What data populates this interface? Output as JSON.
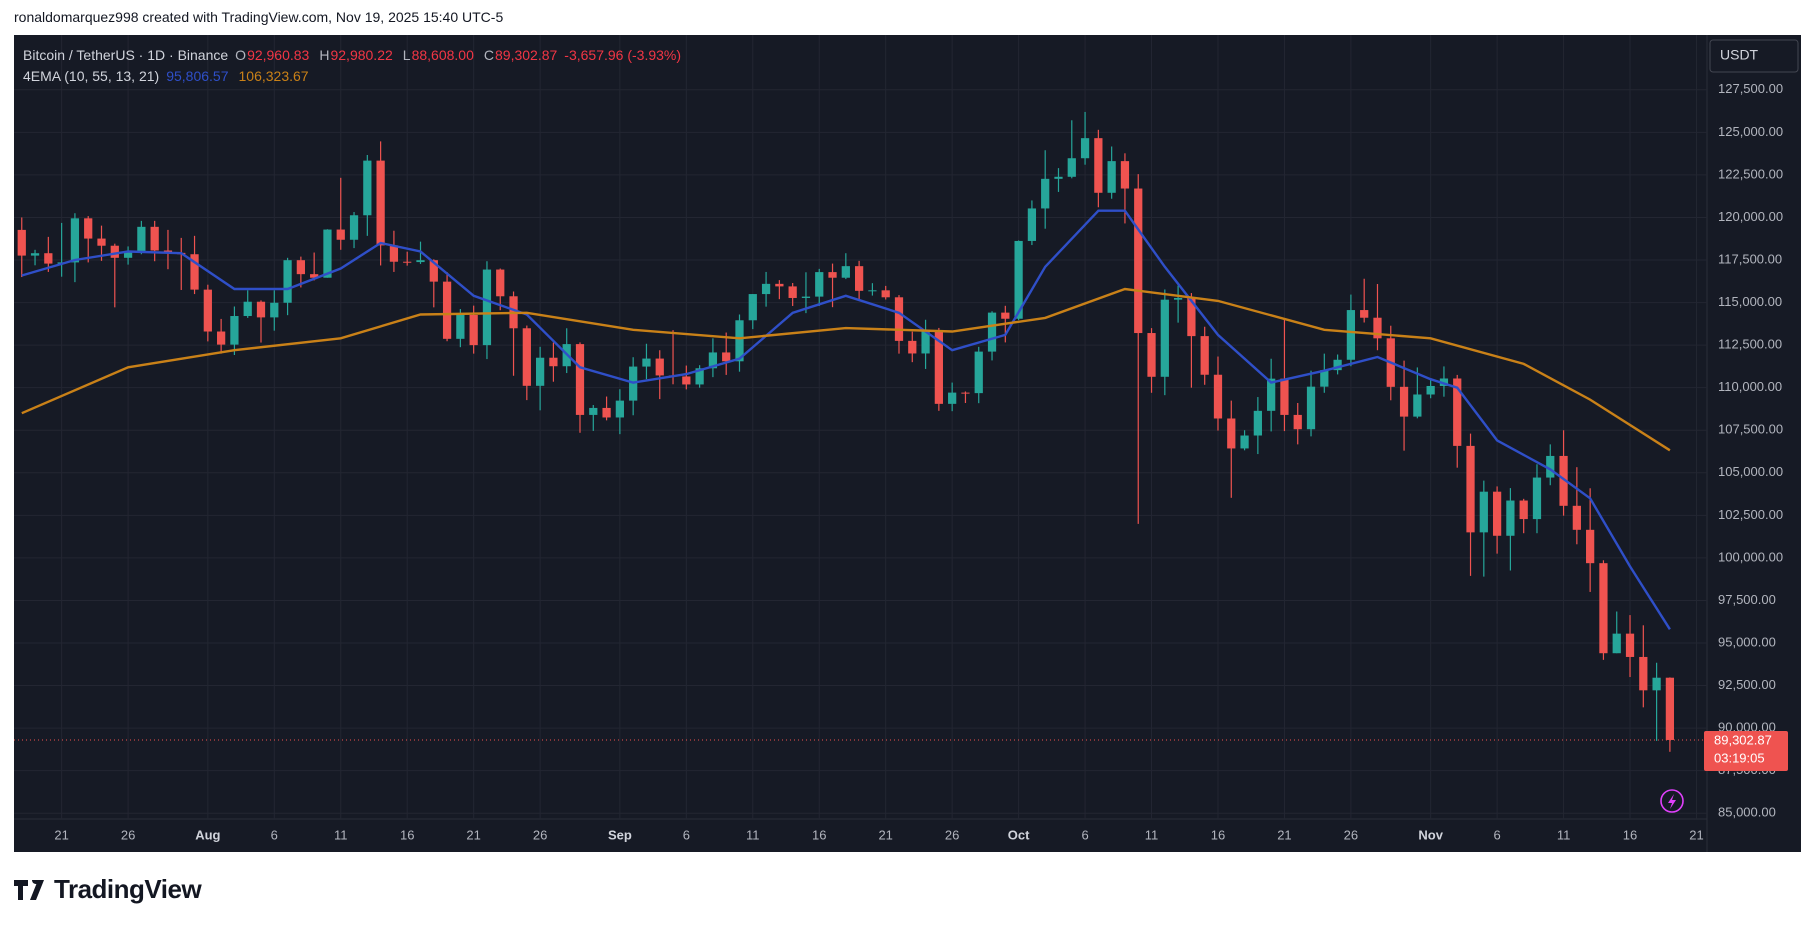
{
  "credit": "ronaldomarquez998 created with TradingView.com, Nov 19, 2025 15:40 UTC-5",
  "logo": "TradingView",
  "header": {
    "symbol": "Bitcoin / TetherUS · 1D · Binance",
    "ohlc": [
      {
        "key": "O",
        "value": "92,960.83"
      },
      {
        "key": "H",
        "value": "92,980.22"
      },
      {
        "key": "L",
        "value": "88,608.00"
      },
      {
        "key": "C",
        "value": "89,302.87"
      }
    ],
    "change": "-3,657.96 (-3.93%)",
    "indicator": "4EMA (10, 55, 13, 21)",
    "indicator_values": [
      "95,806.57",
      "106,323.67"
    ]
  },
  "currency": "USDT",
  "price_label": "89,302.87",
  "countdown": "03:19:05",
  "chart_data": {
    "type": "candlestick",
    "up_color": "#26a69a",
    "down_color": "#ef5350",
    "grid": true,
    "x": [
      "2025-07-18",
      "2025-07-19",
      "2025-07-20",
      "2025-07-21",
      "2025-07-22",
      "2025-07-23",
      "2025-07-24",
      "2025-07-25",
      "2025-07-26",
      "2025-07-27",
      "2025-07-28",
      "2025-07-29",
      "2025-07-30",
      "2025-07-31",
      "2025-08-01",
      "2025-08-02",
      "2025-08-03",
      "2025-08-04",
      "2025-08-05",
      "2025-08-06",
      "2025-08-07",
      "2025-08-08",
      "2025-08-09",
      "2025-08-10",
      "2025-08-11",
      "2025-08-12",
      "2025-08-13",
      "2025-08-14",
      "2025-08-15",
      "2025-08-16",
      "2025-08-17",
      "2025-08-18",
      "2025-08-19",
      "2025-08-20",
      "2025-08-21",
      "2025-08-22",
      "2025-08-23",
      "2025-08-24",
      "2025-08-25",
      "2025-08-26",
      "2025-08-27",
      "2025-08-28",
      "2025-08-29",
      "2025-08-30",
      "2025-08-31",
      "2025-09-01",
      "2025-09-02",
      "2025-09-03",
      "2025-09-04",
      "2025-09-05",
      "2025-09-06",
      "2025-09-07",
      "2025-09-08",
      "2025-09-09",
      "2025-09-10",
      "2025-09-11",
      "2025-09-12",
      "2025-09-13",
      "2025-09-14",
      "2025-09-15",
      "2025-09-16",
      "2025-09-17",
      "2025-09-18",
      "2025-09-19",
      "2025-09-20",
      "2025-09-21",
      "2025-09-22",
      "2025-09-23",
      "2025-09-24",
      "2025-09-25",
      "2025-09-26",
      "2025-09-27",
      "2025-09-28",
      "2025-09-29",
      "2025-09-30",
      "2025-10-01",
      "2025-10-02",
      "2025-10-03",
      "2025-10-04",
      "2025-10-05",
      "2025-10-06",
      "2025-10-07",
      "2025-10-08",
      "2025-10-09",
      "2025-10-10",
      "2025-10-11",
      "2025-10-12",
      "2025-10-13",
      "2025-10-14",
      "2025-10-15",
      "2025-10-16",
      "2025-10-17",
      "2025-10-18",
      "2025-10-19",
      "2025-10-20",
      "2025-10-21",
      "2025-10-22",
      "2025-10-23",
      "2025-10-24",
      "2025-10-25",
      "2025-10-26",
      "2025-10-27",
      "2025-10-28",
      "2025-10-29",
      "2025-10-30",
      "2025-10-31",
      "2025-11-01",
      "2025-11-02",
      "2025-11-03",
      "2025-11-04",
      "2025-11-05",
      "2025-11-06",
      "2025-11-07",
      "2025-11-08",
      "2025-11-09",
      "2025-11-10",
      "2025-11-11",
      "2025-11-12",
      "2025-11-13",
      "2025-11-14",
      "2025-11-15",
      "2025-11-16",
      "2025-11-17",
      "2025-11-18",
      "2025-11-19"
    ],
    "open": [
      119270,
      117760,
      117900,
      117290,
      117360,
      119950,
      118760,
      118340,
      117630,
      117950,
      119450,
      118060,
      117920,
      117840,
      115760,
      113300,
      112530,
      114210,
      115050,
      114130,
      114990,
      117490,
      116670,
      116460,
      119290,
      118690,
      120130,
      123340,
      118360,
      117400,
      117380,
      117490,
      116230,
      112870,
      114270,
      112500,
      116940,
      115370,
      113490,
      110110,
      111760,
      111260,
      112560,
      108400,
      108810,
      108250,
      109240,
      111240,
      111710,
      110720,
      110660,
      110190,
      111140,
      112070,
      111550,
      113960,
      115500,
      116100,
      115950,
      115270,
      115350,
      116790,
      116460,
      117140,
      115690,
      115720,
      115310,
      112750,
      112010,
      113330,
      109050,
      109710,
      109680,
      112120,
      114410,
      114050,
      118620,
      120530,
      122270,
      122390,
      123480,
      124660,
      121450,
      123310,
      121700,
      113210,
      110640,
      115170,
      115270,
      113030,
      110760,
      108190,
      106430,
      107190,
      108640,
      110530,
      108400,
      107560,
      110060,
      111030,
      111640,
      114560,
      114110,
      112900,
      110050,
      108300,
      109600,
      110100,
      110540,
      106580,
      101500,
      103890,
      101300,
      103370,
      102280,
      104720,
      105990,
      103060,
      101650,
      99690,
      94400,
      95550,
      94180,
      92220,
      92960.83
    ],
    "high": [
      120000,
      118100,
      118860,
      119680,
      120250,
      120080,
      119520,
      118460,
      118300,
      119800,
      119800,
      119270,
      118800,
      118920,
      116050,
      114040,
      114770,
      115720,
      115130,
      115720,
      117630,
      117700,
      117940,
      119310,
      122330,
      120320,
      123670,
      124470,
      119220,
      117990,
      118580,
      117540,
      116790,
      114620,
      114820,
      117430,
      117000,
      115650,
      113650,
      112400,
      112650,
      113490,
      112660,
      108980,
      109480,
      109910,
      111790,
      112580,
      112200,
      113380,
      111300,
      111320,
      112900,
      113240,
      114300,
      115500,
      116800,
      116320,
      116150,
      116780,
      116980,
      117290,
      117900,
      117450,
      116140,
      115980,
      115440,
      113290,
      113990,
      113510,
      110300,
      109780,
      112400,
      114490,
      114810,
      118650,
      121000,
      123950,
      122900,
      125710,
      126200,
      125150,
      124170,
      123770,
      122550,
      113500,
      115770,
      116000,
      115560,
      113580,
      111830,
      109240,
      107500,
      109450,
      111700,
      114000,
      109100,
      111000,
      112000,
      111950,
      115470,
      116400,
      116090,
      113640,
      111590,
      111190,
      110560,
      111250,
      110750,
      107300,
      104540,
      104200,
      104100,
      103470,
      105500,
      106670,
      107500,
      105330,
      104090,
      99860,
      96850,
      96640,
      96040,
      93840,
      92980.22
    ],
    "low": [
      116500,
      117190,
      116800,
      116520,
      116200,
      117360,
      117450,
      114720,
      117230,
      117840,
      117430,
      116960,
      115740,
      115500,
      112720,
      112000,
      111920,
      114100,
      112650,
      113350,
      114260,
      115890,
      116300,
      116460,
      118100,
      118200,
      118920,
      117180,
      116800,
      117170,
      117270,
      114720,
      112730,
      112380,
      112000,
      111680,
      114550,
      110700,
      109270,
      108670,
      110350,
      110860,
      107350,
      107460,
      108080,
      107270,
      108380,
      110500,
      109330,
      110200,
      109900,
      110000,
      110620,
      110750,
      110940,
      113440,
      114760,
      115200,
      114800,
      114380,
      114800,
      114730,
      116380,
      115090,
      115410,
      115180,
      112000,
      111500,
      111100,
      108640,
      108620,
      109100,
      109090,
      111600,
      112660,
      113970,
      118380,
      119340,
      121500,
      122300,
      123100,
      120600,
      121100,
      119650,
      102000,
      109700,
      109560,
      113820,
      110000,
      110170,
      107480,
      103530,
      106320,
      106100,
      107430,
      107450,
      106670,
      107140,
      109700,
      110780,
      111260,
      113830,
      112200,
      109260,
      106300,
      108200,
      109380,
      109470,
      105300,
      98940,
      98900,
      100250,
      99260,
      101450,
      101450,
      104270,
      102480,
      100800,
      98000,
      94010,
      94400,
      93000,
      91220,
      89250,
      88608.0
    ],
    "close": [
      117760,
      117900,
      117290,
      117360,
      119950,
      118760,
      118340,
      117630,
      117950,
      119450,
      118060,
      117920,
      117840,
      115760,
      113300,
      112530,
      114210,
      115050,
      114130,
      114990,
      117490,
      116670,
      116460,
      119290,
      118690,
      120130,
      123340,
      118360,
      117400,
      117380,
      117490,
      116230,
      112870,
      114270,
      112500,
      116940,
      115370,
      113490,
      110110,
      111760,
      111260,
      112560,
      108400,
      108810,
      108250,
      109240,
      111240,
      111710,
      110720,
      110660,
      110190,
      111140,
      112070,
      111550,
      113960,
      115500,
      116100,
      115950,
      115270,
      115350,
      116790,
      116460,
      117140,
      115690,
      115720,
      115310,
      112750,
      112010,
      113330,
      109050,
      109710,
      109680,
      112120,
      114410,
      114050,
      118620,
      120530,
      122270,
      122390,
      123480,
      124660,
      121450,
      123310,
      121700,
      113210,
      110640,
      115170,
      115270,
      113030,
      110760,
      108190,
      106430,
      107190,
      108640,
      110530,
      108400,
      107560,
      110060,
      111030,
      111640,
      114560,
      114110,
      112900,
      110050,
      108300,
      109600,
      110100,
      110540,
      106580,
      101500,
      103890,
      101300,
      103370,
      102280,
      104720,
      105990,
      103060,
      101650,
      99690,
      94400,
      95550,
      94180,
      92220,
      92960.83,
      89302.87
    ],
    "lines": [
      {
        "color": "#2f4fc8",
        "x": [
          "2025-07-18",
          "2025-07-22",
          "2025-07-26",
          "2025-07-30",
          "2025-08-03",
          "2025-08-07",
          "2025-08-11",
          "2025-08-14",
          "2025-08-17",
          "2025-08-21",
          "2025-08-25",
          "2025-08-29",
          "2025-09-02",
          "2025-09-06",
          "2025-09-10",
          "2025-09-14",
          "2025-09-18",
          "2025-09-22",
          "2025-09-26",
          "2025-09-30",
          "2025-10-03",
          "2025-10-07",
          "2025-10-09",
          "2025-10-12",
          "2025-10-16",
          "2025-10-20",
          "2025-10-24",
          "2025-10-28",
          "2025-11-01",
          "2025-11-03",
          "2025-11-06",
          "2025-11-10",
          "2025-11-13",
          "2025-11-16",
          "2025-11-19"
        ],
        "values": [
          116590,
          117500,
          118000,
          117900,
          115800,
          115800,
          117000,
          118500,
          118000,
          115400,
          114300,
          111200,
          110300,
          110800,
          111700,
          114400,
          115400,
          114400,
          112200,
          113100,
          117100,
          120400,
          120400,
          117100,
          113100,
          110300,
          111000,
          111800,
          110500,
          110000,
          106900,
          105200,
          103500,
          99500,
          95806.57
        ]
      },
      {
        "color": "#c98118",
        "x": [
          "2025-07-18",
          "2025-07-26",
          "2025-08-03",
          "2025-08-11",
          "2025-08-17",
          "2025-08-25",
          "2025-09-02",
          "2025-09-10",
          "2025-09-18",
          "2025-09-26",
          "2025-10-03",
          "2025-10-09",
          "2025-10-16",
          "2025-10-24",
          "2025-11-01",
          "2025-11-08",
          "2025-11-13",
          "2025-11-19"
        ],
        "values": [
          108500,
          111200,
          112200,
          112900,
          114300,
          114400,
          113400,
          112900,
          113500,
          113300,
          114100,
          115800,
          115100,
          113400,
          112900,
          111400,
          109300,
          106323.67
        ]
      }
    ],
    "xlim": [
      "2025-07-17T10:00:00Z",
      "2025-11-21T19:00:00Z"
    ],
    "xticks": [
      {
        "value": "2025-07-21",
        "label": "21"
      },
      {
        "value": "2025-07-26",
        "label": "26"
      },
      {
        "value": "2025-08-01",
        "label": "Aug"
      },
      {
        "value": "2025-08-06",
        "label": "6"
      },
      {
        "value": "2025-08-11",
        "label": "11"
      },
      {
        "value": "2025-08-16",
        "label": "16"
      },
      {
        "value": "2025-08-21",
        "label": "21"
      },
      {
        "value": "2025-08-26",
        "label": "26"
      },
      {
        "value": "2025-09-01",
        "label": "Sep"
      },
      {
        "value": "2025-09-06",
        "label": "6"
      },
      {
        "value": "2025-09-11",
        "label": "11"
      },
      {
        "value": "2025-09-16",
        "label": "16"
      },
      {
        "value": "2025-09-21",
        "label": "21"
      },
      {
        "value": "2025-09-26",
        "label": "26"
      },
      {
        "value": "2025-10-01",
        "label": "Oct"
      },
      {
        "value": "2025-10-06",
        "label": "6"
      },
      {
        "value": "2025-10-11",
        "label": "11"
      },
      {
        "value": "2025-10-16",
        "label": "16"
      },
      {
        "value": "2025-10-21",
        "label": "21"
      },
      {
        "value": "2025-10-26",
        "label": "26"
      },
      {
        "value": "2025-11-01",
        "label": "Nov"
      },
      {
        "value": "2025-11-06",
        "label": "6"
      },
      {
        "value": "2025-11-11",
        "label": "11"
      },
      {
        "value": "2025-11-16",
        "label": "16"
      },
      {
        "value": "2025-11-21",
        "label": "21"
      }
    ],
    "ylim": [
      84660,
      130720
    ],
    "yticks": [
      {
        "value": 85000,
        "label": "85,000.00"
      },
      {
        "value": 87500,
        "label": "87,500.00"
      },
      {
        "value": 90000,
        "label": "90,000.00"
      },
      {
        "value": 92500,
        "label": "92,500.00"
      },
      {
        "value": 95000,
        "label": "95,000.00"
      },
      {
        "value": 97500,
        "label": "97,500.00"
      },
      {
        "value": 100000,
        "label": "100,000.00"
      },
      {
        "value": 102500,
        "label": "102,500.00"
      },
      {
        "value": 105000,
        "label": "105,000.00"
      },
      {
        "value": 107500,
        "label": "107,500.00"
      },
      {
        "value": 110000,
        "label": "110,000.00"
      },
      {
        "value": 112500,
        "label": "112,500.00"
      },
      {
        "value": 115000,
        "label": "115,000.00"
      },
      {
        "value": 117500,
        "label": "117,500.00"
      },
      {
        "value": 120000,
        "label": "120,000.00"
      },
      {
        "value": 122500,
        "label": "122,500.00"
      },
      {
        "value": 125000,
        "label": "125,000.00"
      },
      {
        "value": 127500,
        "label": "127,500.00"
      }
    ]
  }
}
